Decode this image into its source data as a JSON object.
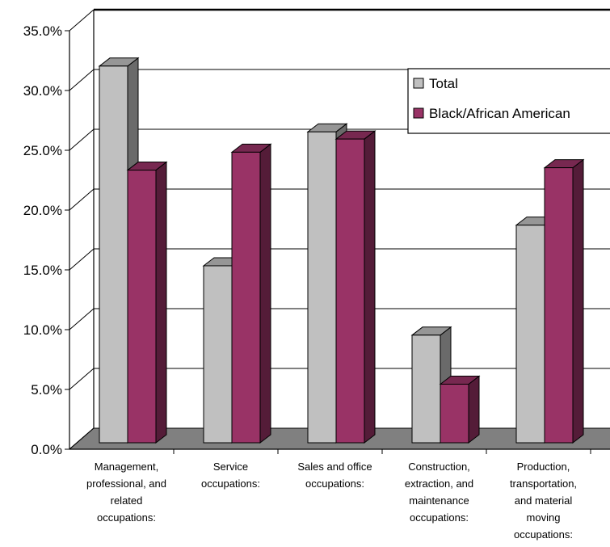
{
  "chart_data": {
    "type": "bar",
    "title": "",
    "xlabel": "",
    "ylabel": "",
    "ylim": [
      0,
      35
    ],
    "yticks": [
      "0.0%",
      "5.0%",
      "10.0%",
      "15.0%",
      "20.0%",
      "25.0%",
      "30.0%",
      "35.0%"
    ],
    "grid": true,
    "legend_position": "top-right",
    "categories": [
      "Management, professional, and related occupations:",
      "Service occupations:",
      "Sales and office occupations:",
      "Construction, extraction, and maintenance occupations:",
      "Production, transportation, and material moving occupations:"
    ],
    "category_lines": [
      [
        "Management,",
        "professional, and",
        "related",
        "occupations:"
      ],
      [
        "Service",
        "occupations:"
      ],
      [
        "Sales and office",
        "occupations:"
      ],
      [
        "Construction,",
        "extraction, and",
        "maintenance",
        "occupations:"
      ],
      [
        "Production,",
        "transportation,",
        "and material",
        "moving",
        "occupations:"
      ]
    ],
    "series": [
      {
        "name": "Total",
        "values": [
          31.5,
          14.8,
          26.0,
          9.0,
          18.2
        ],
        "color": "#c0c0c0"
      },
      {
        "name": "Black/African American",
        "values": [
          22.8,
          24.3,
          25.4,
          4.9,
          23.0
        ],
        "color": "#993366"
      }
    ]
  }
}
